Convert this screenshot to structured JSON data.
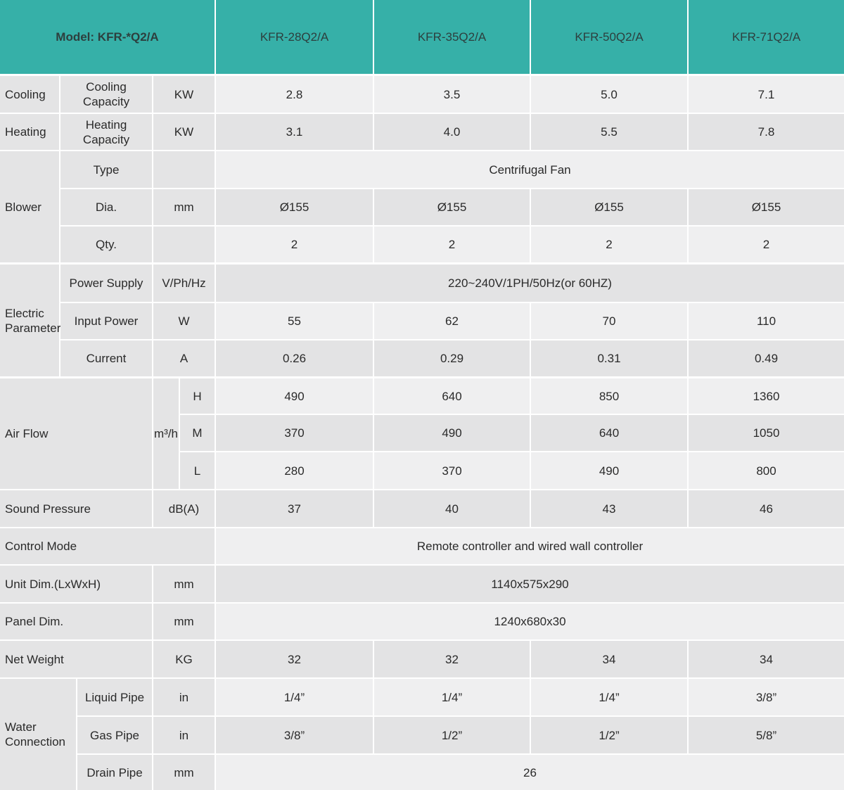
{
  "header": {
    "title": "Model: KFR-*Q2/A",
    "models": [
      "KFR-28Q2/A",
      "KFR-35Q2/A",
      "KFR-50Q2/A",
      "KFR-71Q2/A"
    ]
  },
  "specs": [
    {
      "group": "Cooling",
      "item": "Cooling Capacity",
      "unit": "KW",
      "values": [
        "2.8",
        "3.5",
        "5.0",
        "7.1"
      ]
    },
    {
      "group": "Heating",
      "item": "Heating Capacity",
      "unit": "KW",
      "values": [
        "3.1",
        "4.0",
        "5.5",
        "7.8"
      ]
    },
    {
      "group": "Blower",
      "rows": [
        {
          "item": "Type",
          "value": "Centrifugal Fan"
        },
        {
          "item": "Dia.",
          "unit": "mm",
          "values": [
            "Ø155",
            "Ø155",
            "Ø155",
            "Ø155"
          ]
        },
        {
          "item": "Qty.",
          "values": [
            "2",
            "2",
            "2",
            "2"
          ]
        }
      ]
    },
    {
      "group": "Electric Parameter",
      "rows": [
        {
          "item": "Power Supply",
          "unit": "V/Ph/Hz",
          "value": "220~240V/1PH/50Hz(or 60HZ)"
        },
        {
          "item": "Input Power",
          "unit": "W",
          "values": [
            "55",
            "62",
            "70",
            "110"
          ]
        },
        {
          "item": "Current",
          "unit": "A",
          "values": [
            "0.26",
            "0.29",
            "0.31",
            "0.49"
          ]
        }
      ]
    },
    {
      "group": "Air Flow",
      "unit": "m³/h",
      "rows": [
        {
          "item": "H",
          "values": [
            "490",
            "640",
            "850",
            "1360"
          ]
        },
        {
          "item": "M",
          "values": [
            "370",
            "490",
            "640",
            "1050"
          ]
        },
        {
          "item": "L",
          "values": [
            "280",
            "370",
            "490",
            "800"
          ]
        }
      ]
    },
    {
      "group": "Sound Pressure",
      "unit": "dB(A)",
      "values": [
        "37",
        "40",
        "43",
        "46"
      ]
    },
    {
      "group": "Control Mode",
      "value": "Remote controller and wired wall controller"
    },
    {
      "group": "Unit Dim.(LxWxH)",
      "unit": "mm",
      "value": "1140x575x290"
    },
    {
      "group": "Panel Dim.",
      "unit": "mm",
      "value": "1240x680x30"
    },
    {
      "group": "Net Weight",
      "unit": "KG",
      "values": [
        "32",
        "32",
        "34",
        "34"
      ]
    },
    {
      "group": "Water Connection",
      "rows": [
        {
          "item": "Liquid Pipe",
          "unit": "in",
          "values": [
            "1/4”",
            "1/4”",
            "1/4”",
            "3/8”"
          ]
        },
        {
          "item": "Gas Pipe",
          "unit": "in",
          "values": [
            "3/8”",
            "1/2”",
            "1/2”",
            "5/8”"
          ]
        },
        {
          "item": "Drain Pipe",
          "unit": "mm",
          "value": "26"
        }
      ]
    }
  ]
}
